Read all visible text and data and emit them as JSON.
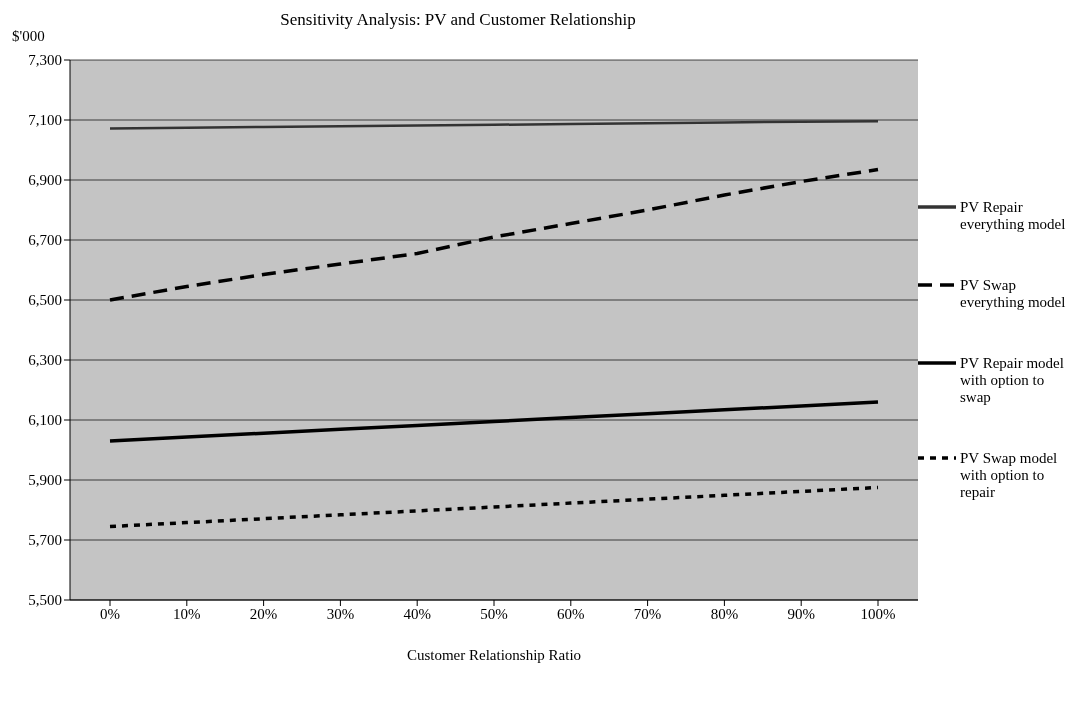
{
  "chart_data": {
    "type": "line",
    "title": "Sensitivity Analysis: PV and Customer Relationship",
    "xlabel": "Customer Relationship Ratio",
    "ylabel": "$'000",
    "categories": [
      "0%",
      "10%",
      "20%",
      "30%",
      "40%",
      "50%",
      "60%",
      "70%",
      "80%",
      "90%",
      "100%"
    ],
    "series": [
      {
        "name": "PV Repair everything model",
        "color": "#333333",
        "line_style": "solid",
        "values": [
          7072,
          7074,
          7077,
          7079,
          7082,
          7084,
          7087,
          7089,
          7092,
          7094,
          7096
        ]
      },
      {
        "name": "PV Swap everything model",
        "color": "#000000",
        "line_style": "dashed",
        "values": [
          6500,
          6545,
          6585,
          6620,
          6655,
          6710,
          6755,
          6800,
          6850,
          6895,
          6935
        ]
      },
      {
        "name": "PV Repair model with option to swap",
        "color": "#000000",
        "line_style": "solid",
        "values": [
          6030,
          6043,
          6056,
          6069,
          6082,
          6095,
          6108,
          6121,
          6134,
          6147,
          6160
        ]
      },
      {
        "name": "PV Swap model with option to repair",
        "color": "#000000",
        "line_style": "dotted",
        "values": [
          5745,
          5758,
          5771,
          5784,
          5797,
          5810,
          5823,
          5836,
          5849,
          5862,
          5875
        ]
      }
    ],
    "ylim": [
      5500,
      7300
    ],
    "yticks": [
      {
        "value": 5500,
        "label": "5,500"
      },
      {
        "value": 5700,
        "label": "5,700"
      },
      {
        "value": 5900,
        "label": "5,900"
      },
      {
        "value": 6100,
        "label": "6,100"
      },
      {
        "value": 6300,
        "label": "6,300"
      },
      {
        "value": 6500,
        "label": "6,500"
      },
      {
        "value": 6700,
        "label": "6,700"
      },
      {
        "value": 6900,
        "label": "6,900"
      },
      {
        "value": 7100,
        "label": "7,100"
      },
      {
        "value": 7300,
        "label": "7,300"
      }
    ],
    "grid": "y",
    "legend": "right",
    "marker": "none"
  }
}
